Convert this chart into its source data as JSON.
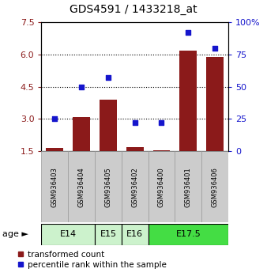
{
  "title": "GDS4591 / 1433218_at",
  "samples": [
    "GSM936403",
    "GSM936404",
    "GSM936405",
    "GSM936402",
    "GSM936400",
    "GSM936401",
    "GSM936406"
  ],
  "transformed_count": [
    1.65,
    3.1,
    3.9,
    1.7,
    1.55,
    6.2,
    5.9
  ],
  "percentile_rank": [
    25,
    50,
    57,
    22,
    22,
    92,
    80
  ],
  "age_groups": [
    {
      "label": "E14",
      "span": [
        0,
        1
      ],
      "color": "#ccf2cc"
    },
    {
      "label": "E15",
      "span": [
        2,
        2
      ],
      "color": "#ccf2cc"
    },
    {
      "label": "E16",
      "span": [
        3,
        3
      ],
      "color": "#ccf2cc"
    },
    {
      "label": "E17.5",
      "span": [
        4,
        6
      ],
      "color": "#44dd44"
    }
  ],
  "ylim_left": [
    1.5,
    7.5
  ],
  "ylim_right": [
    0,
    100
  ],
  "yticks_left": [
    1.5,
    3.0,
    4.5,
    6.0,
    7.5
  ],
  "yticks_right": [
    0,
    25,
    50,
    75,
    100
  ],
  "ytick_right_labels": [
    "0",
    "25",
    "50",
    "75",
    "100%"
  ],
  "hgrid_lines": [
    3.0,
    4.5,
    6.0
  ],
  "bar_color": "#8b1a1a",
  "scatter_color": "#1515cc",
  "bar_width": 0.65,
  "sample_box_color": "#cccccc",
  "sample_box_edge": "#999999",
  "legend_bar_label": "transformed count",
  "legend_scatter_label": "percentile rank within the sample"
}
